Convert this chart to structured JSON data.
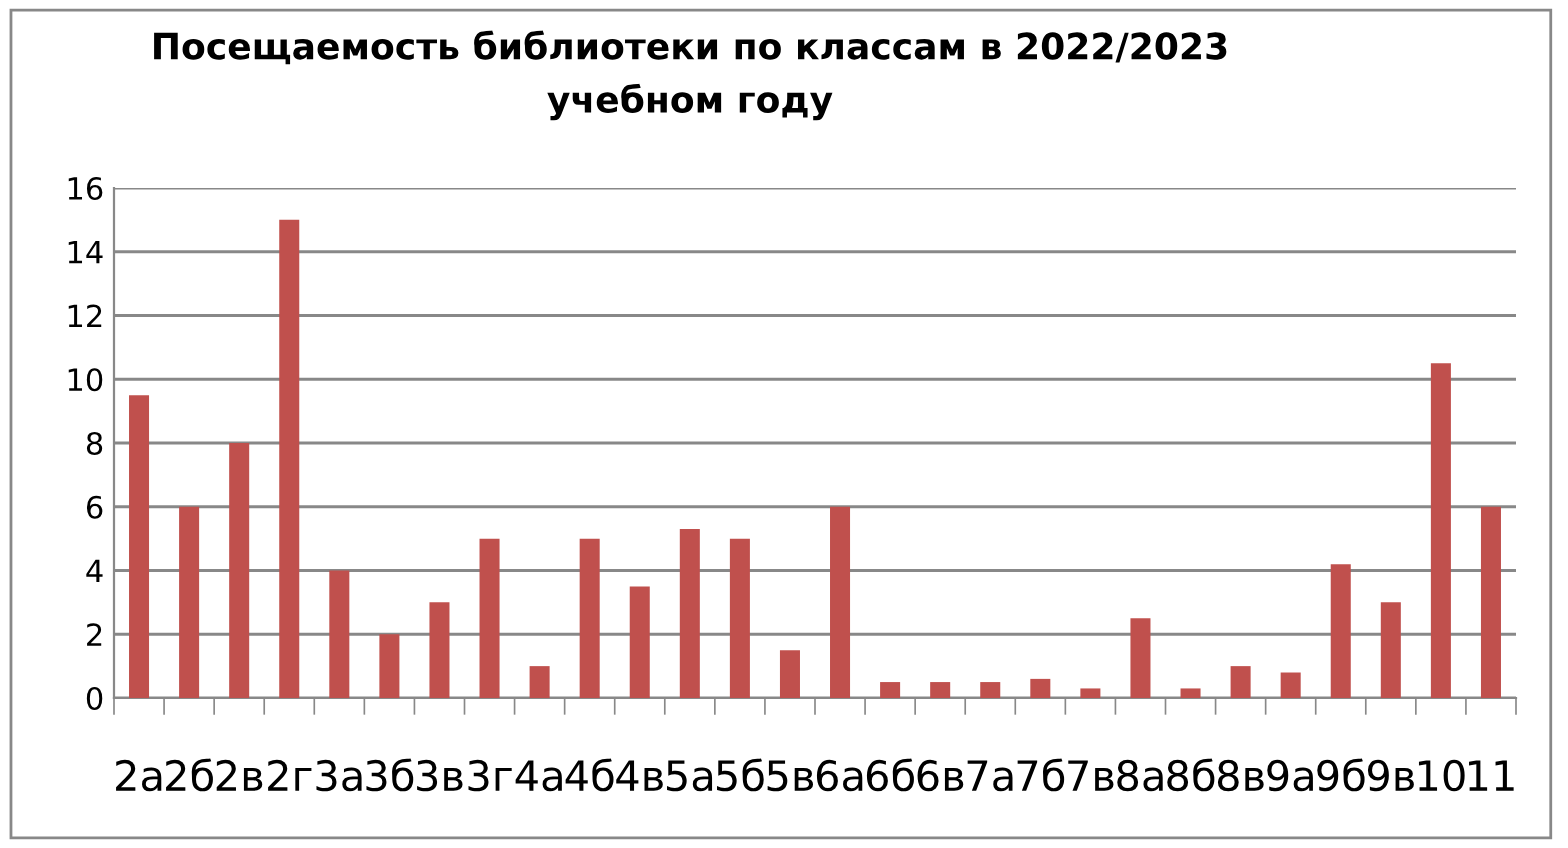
{
  "chart_data": {
    "type": "bar",
    "title": "Посещаемость библиотеки по классам в 2022/2023\nучебном году",
    "categories": [
      "2а",
      "2б",
      "2в",
      "2г",
      "3а",
      "3б",
      "3в",
      "3г",
      "4а",
      "4б",
      "4в",
      "5а",
      "5б",
      "5в",
      "6а",
      "6б",
      "6в",
      "7а",
      "7б",
      "7в",
      "8а",
      "8б",
      "8в",
      "9а",
      "9б",
      "9в",
      "10",
      "11"
    ],
    "values": [
      9.5,
      6,
      8,
      15,
      4,
      2,
      3,
      5,
      1,
      5,
      3.5,
      5.3,
      5,
      1.5,
      6,
      0.5,
      0.5,
      0.5,
      0.6,
      0.3,
      2.5,
      0.3,
      1,
      0.8,
      4.2,
      3,
      10.5,
      6
    ],
    "color": "#c0504d",
    "ylim": [
      0,
      16
    ],
    "yticks": [
      0,
      2,
      4,
      6,
      8,
      10,
      12,
      14,
      16
    ],
    "grid": "y",
    "legend": false
  }
}
